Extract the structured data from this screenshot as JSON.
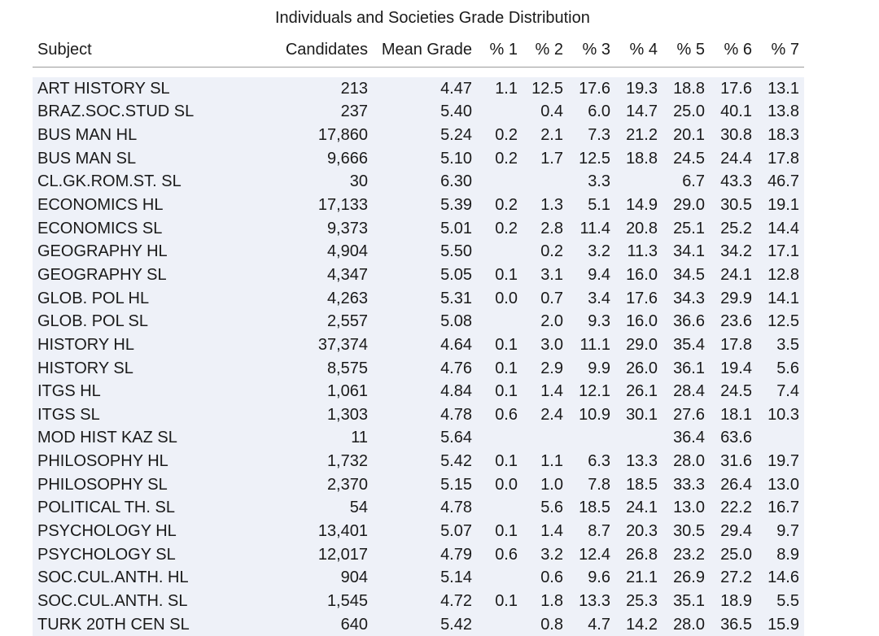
{
  "chart_data": {
    "type": "table",
    "title": "Individuals and Societies Grade Distribution",
    "columns": [
      "Subject",
      "Candidates",
      "Mean Grade",
      "% 1",
      "% 2",
      "% 3",
      "% 4",
      "% 5",
      "% 6",
      "% 7"
    ],
    "rows": [
      [
        "ART HISTORY SL",
        "213",
        "4.47",
        "1.1",
        "12.5",
        "17.6",
        "19.3",
        "18.8",
        "17.6",
        "13.1"
      ],
      [
        "BRAZ.SOC.STUD SL",
        "237",
        "5.40",
        "",
        "0.4",
        "6.0",
        "14.7",
        "25.0",
        "40.1",
        "13.8"
      ],
      [
        "BUS MAN HL",
        "17,860",
        "5.24",
        "0.2",
        "2.1",
        "7.3",
        "21.2",
        "20.1",
        "30.8",
        "18.3"
      ],
      [
        "BUS MAN SL",
        "9,666",
        "5.10",
        "0.2",
        "1.7",
        "12.5",
        "18.8",
        "24.5",
        "24.4",
        "17.8"
      ],
      [
        "CL.GK.ROM.ST. SL",
        "30",
        "6.30",
        "",
        "",
        "3.3",
        "",
        "6.7",
        "43.3",
        "46.7"
      ],
      [
        "ECONOMICS HL",
        "17,133",
        "5.39",
        "0.2",
        "1.3",
        "5.1",
        "14.9",
        "29.0",
        "30.5",
        "19.1"
      ],
      [
        "ECONOMICS SL",
        "9,373",
        "5.01",
        "0.2",
        "2.8",
        "11.4",
        "20.8",
        "25.1",
        "25.2",
        "14.4"
      ],
      [
        "GEOGRAPHY HL",
        "4,904",
        "5.50",
        "",
        "0.2",
        "3.2",
        "11.3",
        "34.1",
        "34.2",
        "17.1"
      ],
      [
        "GEOGRAPHY SL",
        "4,347",
        "5.05",
        "0.1",
        "3.1",
        "9.4",
        "16.0",
        "34.5",
        "24.1",
        "12.8"
      ],
      [
        "GLOB. POL HL",
        "4,263",
        "5.31",
        "0.0",
        "0.7",
        "3.4",
        "17.6",
        "34.3",
        "29.9",
        "14.1"
      ],
      [
        "GLOB. POL SL",
        "2,557",
        "5.08",
        "",
        "2.0",
        "9.3",
        "16.0",
        "36.6",
        "23.6",
        "12.5"
      ],
      [
        "HISTORY HL",
        "37,374",
        "4.64",
        "0.1",
        "3.0",
        "11.1",
        "29.0",
        "35.4",
        "17.8",
        "3.5"
      ],
      [
        "HISTORY SL",
        "8,575",
        "4.76",
        "0.1",
        "2.9",
        "9.9",
        "26.0",
        "36.1",
        "19.4",
        "5.6"
      ],
      [
        "ITGS HL",
        "1,061",
        "4.84",
        "0.1",
        "1.4",
        "12.1",
        "26.1",
        "28.4",
        "24.5",
        "7.4"
      ],
      [
        "ITGS SL",
        "1,303",
        "4.78",
        "0.6",
        "2.4",
        "10.9",
        "30.1",
        "27.6",
        "18.1",
        "10.3"
      ],
      [
        "MOD HIST KAZ SL",
        "11",
        "5.64",
        "",
        "",
        "",
        "",
        "36.4",
        "63.6",
        ""
      ],
      [
        "PHILOSOPHY HL",
        "1,732",
        "5.42",
        "0.1",
        "1.1",
        "6.3",
        "13.3",
        "28.0",
        "31.6",
        "19.7"
      ],
      [
        "PHILOSOPHY SL",
        "2,370",
        "5.15",
        "0.0",
        "1.0",
        "7.8",
        "18.5",
        "33.3",
        "26.4",
        "13.0"
      ],
      [
        "POLITICAL TH. SL",
        "54",
        "4.78",
        "",
        "5.6",
        "18.5",
        "24.1",
        "13.0",
        "22.2",
        "16.7"
      ],
      [
        "PSYCHOLOGY HL",
        "13,401",
        "5.07",
        "0.1",
        "1.4",
        "8.7",
        "20.3",
        "30.5",
        "29.4",
        "9.7"
      ],
      [
        "PSYCHOLOGY SL",
        "12,017",
        "4.79",
        "0.6",
        "3.2",
        "12.4",
        "26.8",
        "23.2",
        "25.0",
        "8.9"
      ],
      [
        "SOC.CUL.ANTH. HL",
        "904",
        "5.14",
        "",
        "0.6",
        "9.6",
        "21.1",
        "26.9",
        "27.2",
        "14.6"
      ],
      [
        "SOC.CUL.ANTH. SL",
        "1,545",
        "4.72",
        "0.1",
        "1.8",
        "13.3",
        "25.3",
        "35.1",
        "18.9",
        "5.5"
      ],
      [
        "TURK 20TH CEN SL",
        "640",
        "5.42",
        "",
        "0.8",
        "4.7",
        "14.2",
        "28.0",
        "36.5",
        "15.9"
      ]
    ]
  },
  "colors": {
    "stripe": "#eef1f8",
    "rule": "#9a9a9a"
  }
}
